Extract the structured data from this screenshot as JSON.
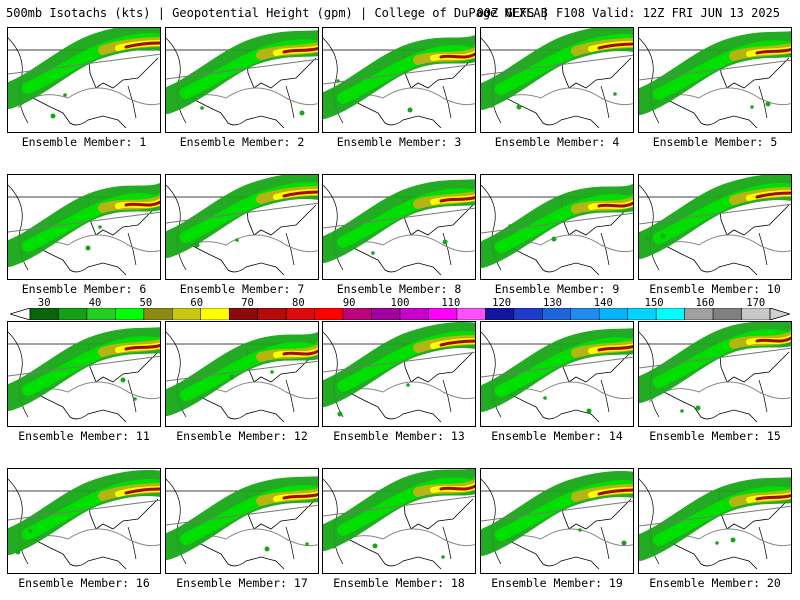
{
  "header": {
    "title": "500mb Isotachs (kts) | Geopotential Height (gpm) | College of DuPage NEXLAB",
    "run_info": "00Z GEFS | F108 Valid: 12Z FRI JUN 13 2025"
  },
  "panels": [
    {
      "label": "Ensemble Member: 1"
    },
    {
      "label": "Ensemble Member: 2"
    },
    {
      "label": "Ensemble Member: 3"
    },
    {
      "label": "Ensemble Member: 4"
    },
    {
      "label": "Ensemble Member: 5"
    },
    {
      "label": "Ensemble Member: 6"
    },
    {
      "label": "Ensemble Member: 7"
    },
    {
      "label": "Ensemble Member: 8"
    },
    {
      "label": "Ensemble Member: 9"
    },
    {
      "label": "Ensemble Member: 10"
    },
    {
      "label": "Ensemble Member: 11"
    },
    {
      "label": "Ensemble Member: 12"
    },
    {
      "label": "Ensemble Member: 13"
    },
    {
      "label": "Ensemble Member: 14"
    },
    {
      "label": "Ensemble Member: 15"
    },
    {
      "label": "Ensemble Member: 16"
    },
    {
      "label": "Ensemble Member: 17"
    },
    {
      "label": "Ensemble Member: 18"
    },
    {
      "label": "Ensemble Member: 19"
    },
    {
      "label": "Ensemble Member: 20"
    }
  ],
  "colorbar": {
    "labels": [
      "30",
      "40",
      "50",
      "60",
      "70",
      "80",
      "90",
      "100",
      "110",
      "120",
      "130",
      "140",
      "150",
      "160",
      "170"
    ],
    "colors": [
      "#0a640a",
      "#14a014",
      "#22d022",
      "#00ff00",
      "#8c8c14",
      "#c8c814",
      "#ffff00",
      "#8c0a0a",
      "#b40a0a",
      "#dc0a0a",
      "#ff0000",
      "#c00078",
      "#a000a0",
      "#c800c8",
      "#ff00ff",
      "#ff50ff",
      "#1414a0",
      "#1e3cc8",
      "#1e64dc",
      "#1e8cf0",
      "#00b4ff",
      "#00d4ff",
      "#00ffff",
      "#a0a0a0",
      "#808080",
      "#c8c8c8"
    ]
  }
}
